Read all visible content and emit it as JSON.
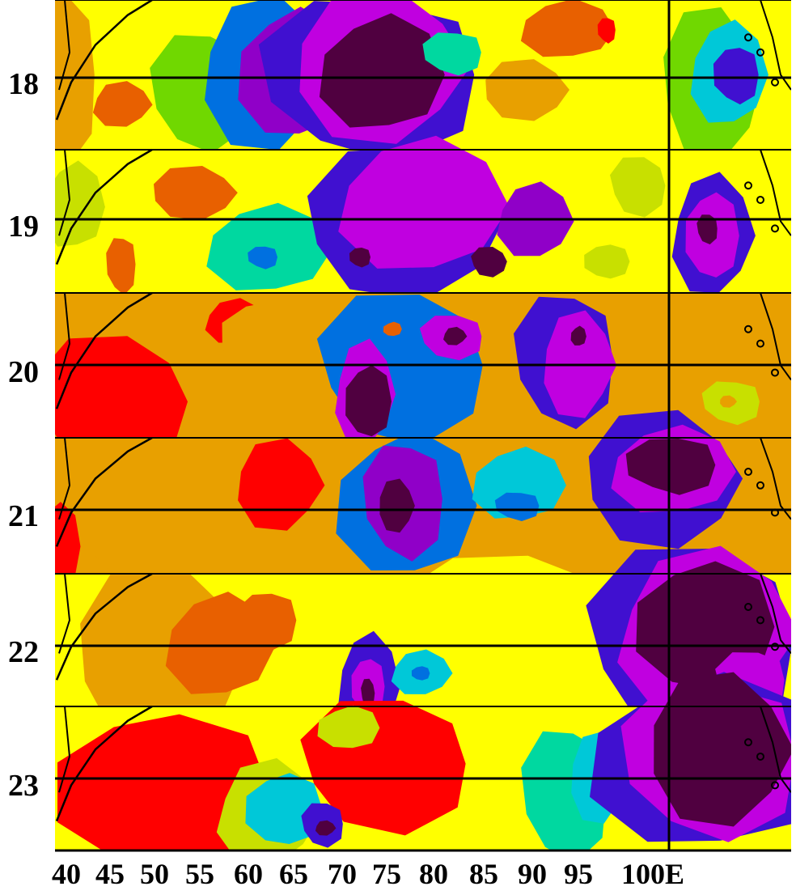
{
  "rows": [
    {
      "label": "18"
    },
    {
      "label": "19"
    },
    {
      "label": "20"
    },
    {
      "label": "21"
    },
    {
      "label": "22"
    },
    {
      "label": "23"
    }
  ],
  "lon_labels": [
    "40",
    "45",
    "50",
    "55",
    "60",
    "65",
    "70",
    "75",
    "80",
    "85",
    "90",
    "95",
    "100E"
  ],
  "palette": [
    "#ff0000",
    "#e86000",
    "#e8a000",
    "#ffff00",
    "#c8e000",
    "#70d800",
    "#00d8a0",
    "#00c8d8",
    "#0070e0",
    "#4010d0",
    "#9000c8",
    "#c000e0",
    "#500040"
  ]
}
